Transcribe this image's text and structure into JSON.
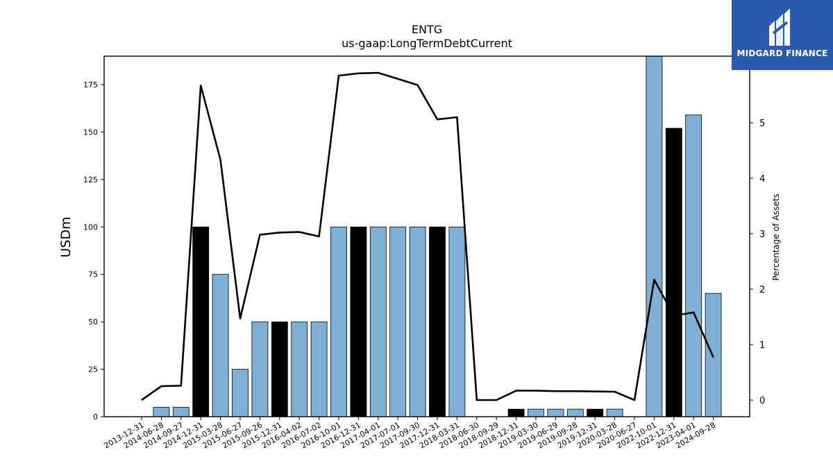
{
  "chart_data": {
    "type": "bar",
    "title": "ENTG",
    "subtitle": "us-gaap:LongTermDebtCurrent",
    "ylabel": "USDm",
    "y2label": "Percentage of Assets",
    "ylim": [
      0,
      190
    ],
    "y2lim": [
      -0.3,
      6.2
    ],
    "yticks": [
      0,
      25,
      50,
      75,
      100,
      125,
      150,
      175
    ],
    "y2ticks": [
      0,
      1,
      2,
      3,
      4,
      5
    ],
    "categories": [
      "2013-12-31",
      "2014-06-28",
      "2014-09-27",
      "2014-12-31",
      "2015-03-28",
      "2015-06-27",
      "2015-09-26",
      "2015-12-31",
      "2016-04-02",
      "2016-07-02",
      "2016-10-01",
      "2016-12-31",
      "2017-04-01",
      "2017-07-01",
      "2017-09-30",
      "2017-12-31",
      "2018-03-31",
      "2018-06-30",
      "2018-09-29",
      "2018-12-31",
      "2019-03-30",
      "2019-06-29",
      "2019-09-28",
      "2019-12-31",
      "2020-03-28",
      "2020-06-27",
      "2022-10-01",
      "2022-12-31",
      "2023-04-01",
      "2024-09-28"
    ],
    "series": [
      {
        "type": "bar",
        "values": [
          0,
          5,
          5,
          100,
          75,
          25,
          50,
          50,
          50,
          50,
          100,
          100,
          100,
          100,
          100,
          100,
          100,
          0,
          0,
          4,
          4,
          4,
          4,
          4,
          4,
          0,
          190,
          152,
          159,
          65
        ],
        "bar_colors": [
          "#7eb0d5",
          "#7eb0d5",
          "#7eb0d5",
          "#000000",
          "#7eb0d5",
          "#7eb0d5",
          "#7eb0d5",
          "#000000",
          "#7eb0d5",
          "#7eb0d5",
          "#7eb0d5",
          "#000000",
          "#7eb0d5",
          "#7eb0d5",
          "#7eb0d5",
          "#000000",
          "#7eb0d5",
          "#7eb0d5",
          "#7eb0d5",
          "#000000",
          "#7eb0d5",
          "#7eb0d5",
          "#7eb0d5",
          "#000000",
          "#7eb0d5",
          "#7eb0d5",
          "#7eb0d5",
          "#000000",
          "#7eb0d5",
          "#7eb0d5"
        ]
      },
      {
        "type": "line",
        "axis": "right",
        "color": "#000000",
        "values": [
          0.0,
          0.25,
          0.26,
          5.67,
          4.33,
          1.47,
          2.98,
          3.02,
          3.03,
          2.95,
          5.85,
          5.89,
          5.9,
          5.79,
          5.68,
          5.06,
          5.1,
          0.0,
          0.0,
          0.17,
          0.17,
          0.16,
          0.16,
          0.155,
          0.15,
          0.0,
          2.17,
          1.52,
          1.58,
          0.77
        ]
      }
    ],
    "grid": false,
    "legend": "none"
  },
  "logo": {
    "text": "MIDGARD FINANCE"
  }
}
